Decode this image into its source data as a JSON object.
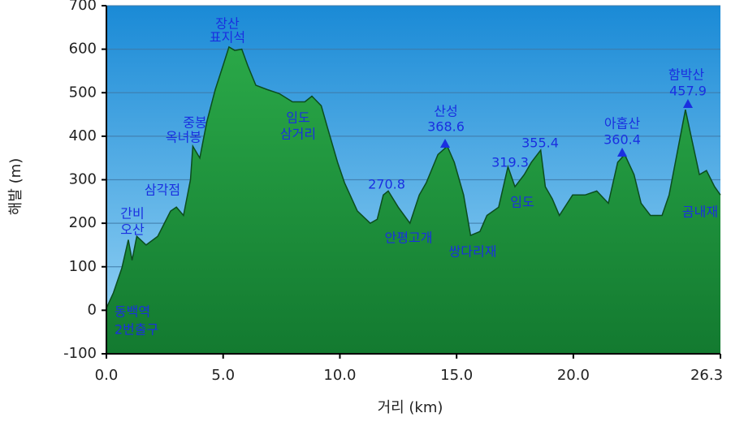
{
  "chart_data": {
    "type": "area",
    "x_label": "거리   (km)",
    "y_label": "해발 (m)",
    "xlim": [
      0,
      26.3
    ],
    "ylim": [
      -100,
      700
    ],
    "xticks": [
      {
        "value": 0,
        "label": "0.0"
      },
      {
        "value": 5,
        "label": "5.0"
      },
      {
        "value": 10,
        "label": "10.0"
      },
      {
        "value": 15,
        "label": "15.0"
      },
      {
        "value": 20,
        "label": "20.0"
      },
      26.3
    ],
    "yticks": [
      -100,
      0,
      100,
      200,
      300,
      400,
      500,
      600,
      700
    ],
    "grid": true,
    "color": "#1f9a3c",
    "x": [
      0,
      0.3,
      0.66,
      0.94,
      1.1,
      1.3,
      1.7,
      2.2,
      2.75,
      3.0,
      3.3,
      3.6,
      3.7,
      4.0,
      4.3,
      4.66,
      5.0,
      5.25,
      5.5,
      5.8,
      6.05,
      6.4,
      6.9,
      7.4,
      7.97,
      8.5,
      8.8,
      9.2,
      9.5,
      9.9,
      10.2,
      10.75,
      11.3,
      11.6,
      11.86,
      12.07,
      12.5,
      13.0,
      13.4,
      13.7,
      14.2,
      14.6,
      14.9,
      15.3,
      15.6,
      16.0,
      16.3,
      16.8,
      17.2,
      17.5,
      17.9,
      18.2,
      18.6,
      18.8,
      19.1,
      19.4,
      19.97,
      20.5,
      21.0,
      21.5,
      21.9,
      22.2,
      22.6,
      22.9,
      23.3,
      23.8,
      24.1,
      24.5,
      24.8,
      25.1,
      25.4,
      25.7,
      26.05,
      26.3
    ],
    "values": [
      5,
      40,
      97,
      162,
      115,
      170,
      150,
      170,
      228,
      237,
      218,
      300,
      377,
      350,
      433,
      507,
      563,
      605,
      597,
      600,
      563,
      517,
      507,
      498,
      479,
      479,
      492,
      470,
      414,
      340,
      293,
      228,
      200,
      209,
      265,
      274,
      237,
      200,
      265,
      293,
      358,
      377,
      340,
      265,
      172,
      181,
      218,
      237,
      330,
      284,
      312,
      340,
      368,
      284,
      256,
      218,
      265,
      265,
      274,
      246,
      340,
      358,
      312,
      246,
      218,
      218,
      265,
      377,
      461,
      386,
      312,
      321,
      284,
      265
    ],
    "annotations": [
      "장산",
      "표지석",
      "중봉",
      "옥녀봉",
      "임도",
      "삼거리",
      "삼각점",
      "간비",
      "오산",
      "동백역",
      "2번출구",
      "270.8",
      "안평고개",
      "산성",
      "368.6",
      "쌍다리재",
      "319.3",
      "355.4",
      "임도",
      "아홉산",
      "360.4",
      "함박산",
      "457.9",
      "곰내재"
    ]
  }
}
